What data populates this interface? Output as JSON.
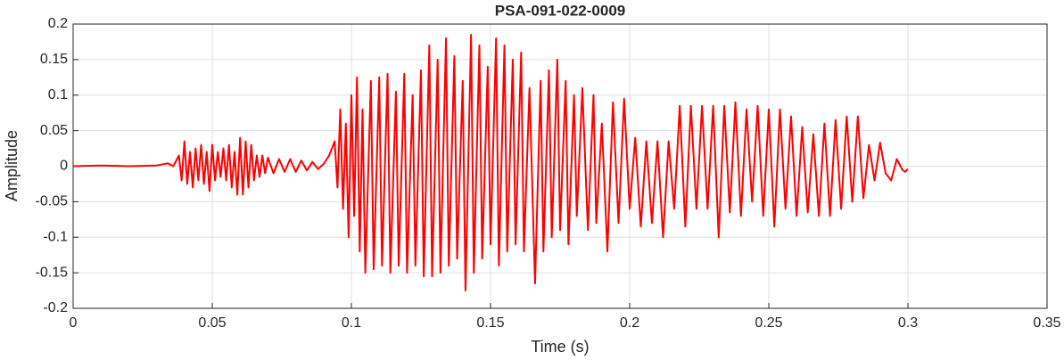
{
  "chart_data": {
    "type": "line",
    "title": "PSA-091-022-0009",
    "xlabel": "Time (s)",
    "ylabel": "Amplitude",
    "color": "#ff0000",
    "grid": true,
    "xlim": [
      0,
      0.35
    ],
    "xticks": [
      0,
      0.05,
      0.1,
      0.15,
      0.2,
      0.25,
      0.3,
      0.35
    ],
    "ylim": [
      -0.2,
      0.2
    ],
    "yticks": [
      -0.2,
      -0.15,
      -0.1,
      -0.05,
      0,
      0.05,
      0.1,
      0.15,
      0.2
    ],
    "x": [
      0,
      0.01,
      0.02,
      0.03,
      0.034,
      0.036,
      0.038,
      0.039,
      0.04,
      0.041,
      0.042,
      0.043,
      0.044,
      0.045,
      0.046,
      0.047,
      0.048,
      0.049,
      0.05,
      0.051,
      0.052,
      0.053,
      0.054,
      0.055,
      0.056,
      0.057,
      0.058,
      0.059,
      0.06,
      0.061,
      0.062,
      0.063,
      0.064,
      0.065,
      0.066,
      0.067,
      0.068,
      0.069,
      0.07,
      0.072,
      0.074,
      0.076,
      0.078,
      0.08,
      0.082,
      0.084,
      0.086,
      0.088,
      0.09,
      0.092,
      0.094,
      0.095,
      0.096,
      0.097,
      0.098,
      0.099,
      0.1,
      0.101,
      0.102,
      0.103,
      0.104,
      0.105,
      0.107,
      0.108,
      0.11,
      0.111,
      0.113,
      0.114,
      0.116,
      0.117,
      0.119,
      0.12,
      0.122,
      0.123,
      0.125,
      0.126,
      0.128,
      0.129,
      0.131,
      0.132,
      0.134,
      0.135,
      0.137,
      0.138,
      0.14,
      0.141,
      0.143,
      0.144,
      0.146,
      0.147,
      0.149,
      0.15,
      0.152,
      0.153,
      0.155,
      0.156,
      0.158,
      0.159,
      0.161,
      0.162,
      0.164,
      0.166,
      0.168,
      0.169,
      0.171,
      0.172,
      0.174,
      0.175,
      0.177,
      0.178,
      0.18,
      0.181,
      0.183,
      0.185,
      0.187,
      0.188,
      0.19,
      0.192,
      0.194,
      0.196,
      0.198,
      0.2,
      0.202,
      0.204,
      0.206,
      0.208,
      0.21,
      0.212,
      0.214,
      0.216,
      0.218,
      0.22,
      0.222,
      0.224,
      0.226,
      0.228,
      0.23,
      0.232,
      0.234,
      0.236,
      0.238,
      0.24,
      0.242,
      0.244,
      0.246,
      0.248,
      0.25,
      0.252,
      0.254,
      0.256,
      0.258,
      0.26,
      0.262,
      0.264,
      0.266,
      0.268,
      0.27,
      0.272,
      0.274,
      0.276,
      0.278,
      0.28,
      0.282,
      0.284,
      0.286,
      0.288,
      0.29,
      0.292,
      0.294,
      0.296,
      0.298,
      0.299,
      0.3
    ],
    "values": [
      0,
      0.001,
      0,
      0.001,
      0.004,
      0,
      0.015,
      -0.02,
      0.035,
      -0.025,
      0.02,
      -0.03,
      0.025,
      -0.02,
      0.03,
      -0.025,
      0.02,
      -0.035,
      0.03,
      -0.02,
      0.02,
      -0.015,
      0.025,
      -0.02,
      0.03,
      -0.03,
      0.02,
      -0.04,
      0.04,
      -0.04,
      0.035,
      -0.03,
      0.03,
      -0.02,
      0.015,
      -0.015,
      0.015,
      -0.01,
      0.012,
      -0.01,
      0.01,
      -0.008,
      0.01,
      -0.008,
      0.008,
      -0.006,
      0.006,
      -0.004,
      0.003,
      0.015,
      0.035,
      -0.03,
      0.08,
      -0.06,
      0.06,
      -0.1,
      0.1,
      -0.07,
      0.125,
      -0.12,
      0.08,
      -0.15,
      0.12,
      -0.145,
      0.125,
      -0.14,
      0.13,
      -0.15,
      0.105,
      -0.14,
      0.13,
      -0.15,
      0.1,
      -0.14,
      0.135,
      -0.155,
      0.17,
      -0.155,
      0.15,
      -0.15,
      0.18,
      -0.14,
      0.155,
      -0.13,
      0.12,
      -0.175,
      0.185,
      -0.15,
      0.17,
      -0.13,
      0.14,
      -0.11,
      0.18,
      -0.14,
      0.17,
      -0.12,
      0.15,
      -0.11,
      0.16,
      -0.12,
      0.11,
      -0.165,
      0.12,
      -0.12,
      0.135,
      -0.1,
      0.15,
      -0.09,
      0.12,
      -0.11,
      0.1,
      -0.07,
      0.11,
      -0.09,
      0.1,
      -0.08,
      0.06,
      -0.12,
      0.09,
      -0.08,
      0.095,
      -0.06,
      0.04,
      -0.085,
      0.035,
      -0.08,
      0.035,
      -0.1,
      0.035,
      -0.06,
      0.085,
      -0.085,
      0.085,
      -0.06,
      0.085,
      -0.06,
      0.085,
      -0.1,
      0.085,
      -0.065,
      0.09,
      -0.07,
      0.08,
      -0.05,
      0.085,
      -0.07,
      0.08,
      -0.085,
      0.08,
      -0.06,
      0.07,
      -0.07,
      0.055,
      -0.065,
      0.045,
      -0.07,
      0.06,
      -0.07,
      0.065,
      -0.06,
      0.07,
      -0.05,
      0.07,
      -0.045,
      0.03,
      -0.02,
      0.033,
      -0.01,
      -0.02,
      0.01,
      -0.005,
      -0.008,
      -0.004
    ]
  }
}
